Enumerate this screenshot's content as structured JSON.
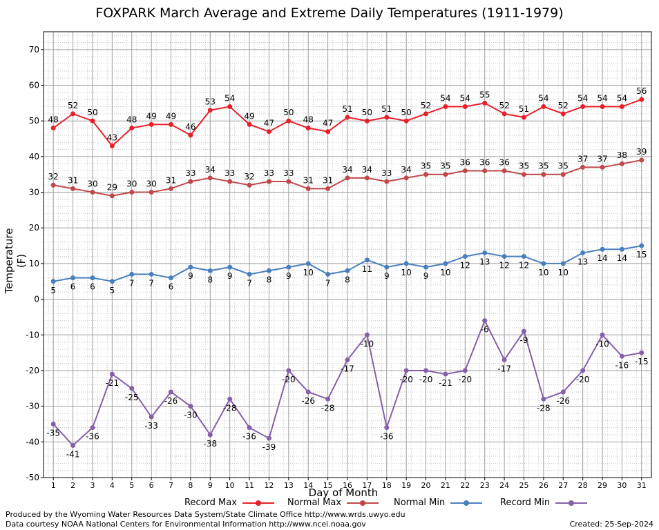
{
  "title": "FOXPARK March Average and Extreme Daily Temperatures (1911-1979)",
  "footer": {
    "produced": "Produced by the Wyoming Water Resources Data System/State Climate Office http://www.wrds.uwyo.edu",
    "courtesy": "Data courtesy NOAA National Centers for Environmental Information http://www.ncei.noaa.gov",
    "created": "Created:  25-Sep-2024"
  },
  "chart_data": {
    "type": "line",
    "xlabel": "Day of Month",
    "ylabel": "Temperature (F)",
    "ylim": [
      -50,
      75
    ],
    "xlim": [
      0.5,
      31.5
    ],
    "grid": true,
    "legend_position": "bottom",
    "x": [
      1,
      2,
      3,
      4,
      5,
      6,
      7,
      8,
      9,
      10,
      11,
      12,
      13,
      14,
      15,
      16,
      17,
      18,
      19,
      20,
      21,
      22,
      23,
      24,
      25,
      26,
      27,
      28,
      29,
      30,
      31
    ],
    "yticks": [
      -50,
      -40,
      -30,
      -20,
      -10,
      0,
      10,
      20,
      30,
      40,
      50,
      60,
      70
    ],
    "series": [
      {
        "name": "Record Max",
        "color": "#e8202a",
        "label_pos": "above",
        "values": [
          48,
          52,
          50,
          43,
          48,
          49,
          49,
          46,
          53,
          54,
          49,
          47,
          50,
          48,
          47,
          51,
          50,
          51,
          50,
          52,
          54,
          54,
          55,
          52,
          51,
          54,
          52,
          54,
          54,
          54,
          56
        ]
      },
      {
        "name": "Normal Max",
        "color": "#c0484a",
        "label_pos": "above",
        "values": [
          32,
          31,
          30,
          29,
          30,
          30,
          31,
          33,
          34,
          33,
          32,
          33,
          33,
          31,
          31,
          34,
          34,
          33,
          34,
          35,
          35,
          36,
          36,
          36,
          35,
          35,
          35,
          37,
          37,
          38,
          39
        ]
      },
      {
        "name": "Normal Min",
        "color": "#4a7fbf",
        "label_pos": "below",
        "values": [
          5,
          6,
          6,
          5,
          7,
          7,
          6,
          9,
          8,
          9,
          7,
          8,
          9,
          10,
          7,
          8,
          11,
          9,
          10,
          9,
          10,
          12,
          13,
          12,
          12,
          10,
          10,
          13,
          14,
          14,
          15
        ]
      },
      {
        "name": "Record Min",
        "color": "#8460a8",
        "label_pos": "below",
        "values": [
          -35,
          -41,
          -36,
          -21,
          -25,
          -33,
          -26,
          -30,
          -38,
          -28,
          -36,
          -39,
          -20,
          -26,
          -28,
          -17,
          -10,
          -36,
          -20,
          -20,
          -21,
          -20,
          -6,
          -17,
          -9,
          -28,
          -26,
          -20,
          -10,
          -16,
          -15
        ]
      }
    ]
  }
}
